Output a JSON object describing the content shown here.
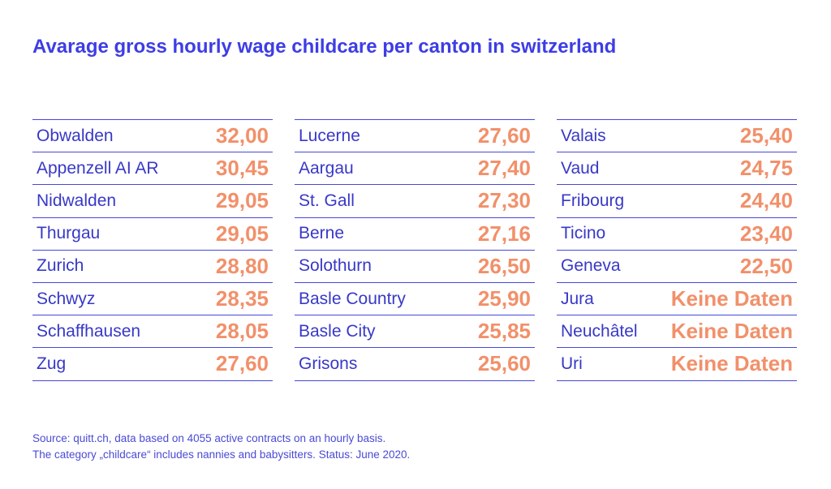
{
  "title": "Avarage gross hourly wage childcare per canton in switzerland",
  "footer": {
    "line1": "Source: quitt.ch, data based on 4055 active contracts on an hourly basis.",
    "line2": "The category „childcare“ includes nannies and babysitters. Status: June 2020."
  },
  "colors": {
    "title": "#3d3de6",
    "canton_text": "#3838c8",
    "value_text": "#f2906a",
    "rules": "#4747d9"
  },
  "chart_data": {
    "type": "table",
    "title": "Avarage gross hourly wage childcare per canton in switzerland",
    "columns": [
      [
        {
          "canton": "Obwalden",
          "value": "32,00"
        },
        {
          "canton": "Appenzell AI AR",
          "value": "30,45"
        },
        {
          "canton": "Nidwalden",
          "value": "29,05"
        },
        {
          "canton": "Thurgau",
          "value": "29,05"
        },
        {
          "canton": "Zurich",
          "value": "28,80"
        },
        {
          "canton": "Schwyz",
          "value": "28,35"
        },
        {
          "canton": "Schaffhausen",
          "value": "28,05"
        },
        {
          "canton": "Zug",
          "value": "27,60"
        }
      ],
      [
        {
          "canton": "Lucerne",
          "value": "27,60"
        },
        {
          "canton": "Aargau",
          "value": "27,40"
        },
        {
          "canton": "St. Gall",
          "value": "27,30"
        },
        {
          "canton": "Berne",
          "value": "27,16"
        },
        {
          "canton": "Solothurn",
          "value": "26,50"
        },
        {
          "canton": "Basle Country",
          "value": "25,90"
        },
        {
          "canton": "Basle City",
          "value": "25,85"
        },
        {
          "canton": "Grisons",
          "value": "25,60"
        }
      ],
      [
        {
          "canton": "Valais",
          "value": "25,40"
        },
        {
          "canton": "Vaud",
          "value": "24,75"
        },
        {
          "canton": "Fribourg",
          "value": "24,40"
        },
        {
          "canton": "Ticino",
          "value": "23,40"
        },
        {
          "canton": "Geneva",
          "value": "22,50"
        },
        {
          "canton": "Jura",
          "value": "Keine Daten"
        },
        {
          "canton": "Neuchâtel",
          "value": "Keine Daten"
        },
        {
          "canton": "Uri",
          "value": "Keine Daten"
        }
      ]
    ]
  }
}
